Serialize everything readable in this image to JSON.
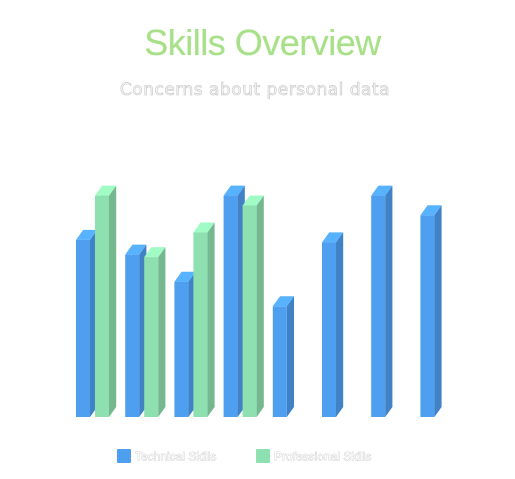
{
  "chart_data": {
    "type": "bar",
    "title": "Skills Overview",
    "subtitle": "Concerns about personal data",
    "categories": [
      "",
      "",
      "",
      "",
      "",
      "",
      "",
      ""
    ],
    "series": [
      {
        "name": "Technical Skills",
        "color": "#4e9ff0",
        "values": [
          72,
          66,
          55,
          90,
          45,
          71,
          90,
          82
        ]
      },
      {
        "name": "Professional Skills",
        "color": "#8fe0b0",
        "values": [
          90,
          65,
          75,
          86,
          null,
          null,
          null,
          null
        ]
      }
    ],
    "ylim": [
      0,
      100
    ],
    "grid": false,
    "legend_position": "bottom",
    "style": "3d-columns"
  }
}
